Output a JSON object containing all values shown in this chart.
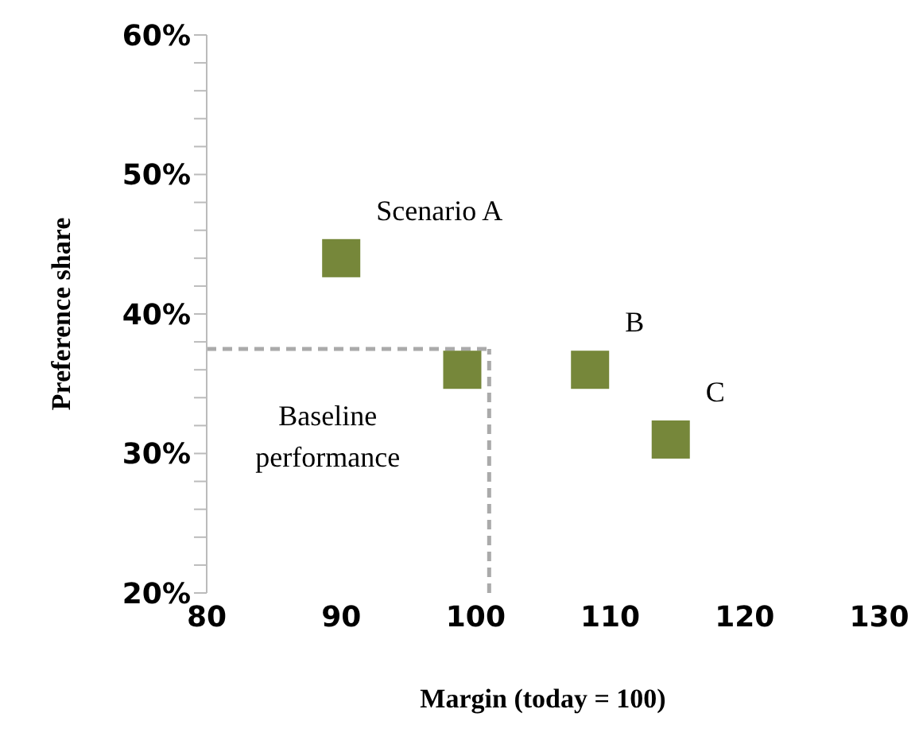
{
  "chart_data": {
    "type": "scatter",
    "xlabel": "Margin (today = 100)",
    "ylabel": "Preference share",
    "x": [
      90,
      99,
      108.5,
      114.5
    ],
    "values": [
      44,
      36,
      36,
      31
    ],
    "color": "#76873a",
    "marker": "square",
    "grid": false,
    "legend": false,
    "xlim": [
      80,
      130
    ],
    "xticks": [
      80,
      90,
      100,
      110,
      120,
      130
    ],
    "ylim": [
      20,
      60
    ],
    "yticks": [
      {
        "value": 20,
        "label": "20%"
      },
      {
        "value": 22,
        "label": null
      },
      {
        "value": 24,
        "label": null
      },
      {
        "value": 26,
        "label": null
      },
      {
        "value": 28,
        "label": null
      },
      {
        "value": 30,
        "label": "30%"
      },
      {
        "value": 32,
        "label": null
      },
      {
        "value": 34,
        "label": null
      },
      {
        "value": 36,
        "label": null
      },
      {
        "value": 38,
        "label": null
      },
      {
        "value": 40,
        "label": "40%"
      },
      {
        "value": 42,
        "label": null
      },
      {
        "value": 44,
        "label": null
      },
      {
        "value": 46,
        "label": null
      },
      {
        "value": 48,
        "label": null
      },
      {
        "value": 50,
        "label": "50%"
      },
      {
        "value": 52,
        "label": null
      },
      {
        "value": 54,
        "label": null
      },
      {
        "value": 56,
        "label": null
      },
      {
        "value": 58,
        "label": null
      },
      {
        "value": 60,
        "label": "60%"
      }
    ],
    "ref_lines": [
      {
        "axis": "x",
        "value": 101,
        "color": "#aaaaaa",
        "line_style": "dashed"
      },
      {
        "axis": "y",
        "value": 37.5,
        "color": "#aaaaaa",
        "line_style": "dashed"
      }
    ],
    "annotations": [
      {
        "text": "Scenario A",
        "x": 90,
        "y": 44
      },
      {
        "text": "B",
        "x": 108.5,
        "y": 36
      },
      {
        "text": "C",
        "x": 114.5,
        "y": 31
      },
      "Baseline performance"
    ]
  }
}
